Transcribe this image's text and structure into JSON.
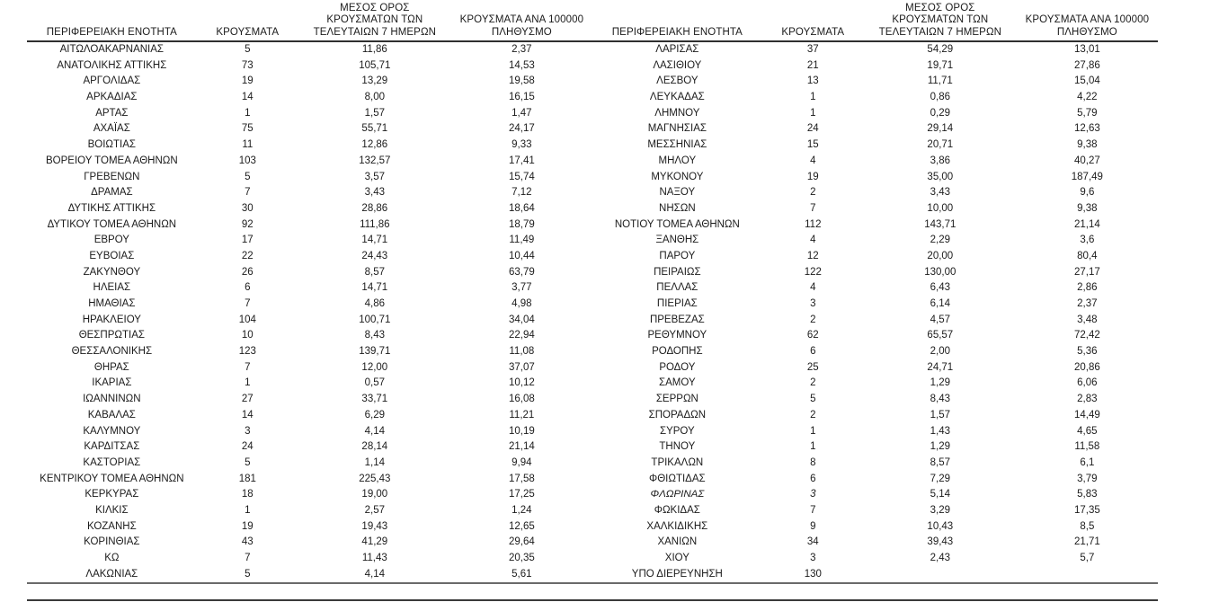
{
  "document": {
    "type": "regional-covid-cases-table",
    "language": "el",
    "text_color": "#1b1b1b",
    "header_rule_color": "#2f2f2f",
    "bottom_rule1_color": "#6a6a6a",
    "bottom_rule2_color": "#3a3a3a"
  },
  "table": {
    "headers": {
      "region": "ΠΕΡΙΦΕΡΕΙΑΚΗ ΕΝΟΤΗΤΑ",
      "cases": "ΚΡΟΥΣΜΑΤΑ",
      "avg7_lines": [
        "ΜΕΣΟΣ ΟΡΟΣ",
        "ΚΡΟΥΣΜΑΤΩΝ ΤΩΝ",
        "ΤΕΛΕΥΤΑΙΩΝ 7 ΗΜΕΡΩΝ"
      ],
      "per100k_lines": [
        "ΚΡΟΥΣΜΑΤΑ ΑΝΑ 100000",
        "ΠΛΗΘΥΣΜΟ"
      ]
    },
    "left_rows": [
      {
        "region": "ΑΙΤΩΛΟΑΚΑΡΝΑΝΙΑΣ",
        "cases": "5",
        "avg7": "11,86",
        "per100k": "2,37"
      },
      {
        "region": "ΑΝΑΤΟΛΙΚΗΣ ΑΤΤΙΚΗΣ",
        "cases": "73",
        "avg7": "105,71",
        "per100k": "14,53"
      },
      {
        "region": "ΑΡΓΟΛΙΔΑΣ",
        "cases": "19",
        "avg7": "13,29",
        "per100k": "19,58"
      },
      {
        "region": "ΑΡΚΑΔΙΑΣ",
        "cases": "14",
        "avg7": "8,00",
        "per100k": "16,15"
      },
      {
        "region": "ΑΡΤΑΣ",
        "cases": "1",
        "avg7": "1,57",
        "per100k": "1,47"
      },
      {
        "region": "ΑΧΑΪΑΣ",
        "cases": "75",
        "avg7": "55,71",
        "per100k": "24,17"
      },
      {
        "region": "ΒΟΙΩΤΙΑΣ",
        "cases": "11",
        "avg7": "12,86",
        "per100k": "9,33"
      },
      {
        "region": "ΒΟΡΕΙΟΥ ΤΟΜΕΑ ΑΘΗΝΩΝ",
        "cases": "103",
        "avg7": "132,57",
        "per100k": "17,41"
      },
      {
        "region": "ΓΡΕΒΕΝΩΝ",
        "cases": "5",
        "avg7": "3,57",
        "per100k": "15,74"
      },
      {
        "region": "ΔΡΑΜΑΣ",
        "cases": "7",
        "avg7": "3,43",
        "per100k": "7,12"
      },
      {
        "region": "ΔΥΤΙΚΗΣ ΑΤΤΙΚΗΣ",
        "cases": "30",
        "avg7": "28,86",
        "per100k": "18,64"
      },
      {
        "region": "ΔΥΤΙΚΟΥ ΤΟΜΕΑ ΑΘΗΝΩΝ",
        "cases": "92",
        "avg7": "111,86",
        "per100k": "18,79"
      },
      {
        "region": "ΕΒΡΟΥ",
        "cases": "17",
        "avg7": "14,71",
        "per100k": "11,49"
      },
      {
        "region": "ΕΥΒΟΙΑΣ",
        "cases": "22",
        "avg7": "24,43",
        "per100k": "10,44"
      },
      {
        "region": "ΖΑΚΥΝΘΟΥ",
        "cases": "26",
        "avg7": "8,57",
        "per100k": "63,79"
      },
      {
        "region": "ΗΛΕΙΑΣ",
        "cases": "6",
        "avg7": "14,71",
        "per100k": "3,77"
      },
      {
        "region": "ΗΜΑΘΙΑΣ",
        "cases": "7",
        "avg7": "4,86",
        "per100k": "4,98"
      },
      {
        "region": "ΗΡΑΚΛΕΙΟΥ",
        "cases": "104",
        "avg7": "100,71",
        "per100k": "34,04"
      },
      {
        "region": "ΘΕΣΠΡΩΤΙΑΣ",
        "cases": "10",
        "avg7": "8,43",
        "per100k": "22,94"
      },
      {
        "region": "ΘΕΣΣΑΛΟΝΙΚΗΣ",
        "cases": "123",
        "avg7": "139,71",
        "per100k": "11,08"
      },
      {
        "region": "ΘΗΡΑΣ",
        "cases": "7",
        "avg7": "12,00",
        "per100k": "37,07"
      },
      {
        "region": "ΙΚΑΡΙΑΣ",
        "cases": "1",
        "avg7": "0,57",
        "per100k": "10,12"
      },
      {
        "region": "ΙΩΑΝΝΙΝΩΝ",
        "cases": "27",
        "avg7": "33,71",
        "per100k": "16,08"
      },
      {
        "region": "ΚΑΒΑΛΑΣ",
        "cases": "14",
        "avg7": "6,29",
        "per100k": "11,21"
      },
      {
        "region": "ΚΑΛΥΜΝΟΥ",
        "cases": "3",
        "avg7": "4,14",
        "per100k": "10,19"
      },
      {
        "region": "ΚΑΡΔΙΤΣΑΣ",
        "cases": "24",
        "avg7": "28,14",
        "per100k": "21,14"
      },
      {
        "region": "ΚΑΣΤΟΡΙΑΣ",
        "cases": "5",
        "avg7": "1,14",
        "per100k": "9,94"
      },
      {
        "region": "ΚΕΝΤΡΙΚΟΥ ΤΟΜΕΑ ΑΘΗΝΩΝ",
        "cases": "181",
        "avg7": "225,43",
        "per100k": "17,58"
      },
      {
        "region": "ΚΕΡΚΥΡΑΣ",
        "cases": "18",
        "avg7": "19,00",
        "per100k": "17,25"
      },
      {
        "region": "ΚΙΛΚΙΣ",
        "cases": "1",
        "avg7": "2,57",
        "per100k": "1,24"
      },
      {
        "region": "ΚΟΖΑΝΗΣ",
        "cases": "19",
        "avg7": "19,43",
        "per100k": "12,65"
      },
      {
        "region": "ΚΟΡΙΝΘΙΑΣ",
        "cases": "43",
        "avg7": "41,29",
        "per100k": "29,64"
      },
      {
        "region": "ΚΩ",
        "cases": "7",
        "avg7": "11,43",
        "per100k": "20,35"
      },
      {
        "region": "ΛΑΚΩΝΙΑΣ",
        "cases": "5",
        "avg7": "4,14",
        "per100k": "5,61"
      }
    ],
    "right_rows": [
      {
        "region": "ΛΑΡΙΣΑΣ",
        "cases": "37",
        "avg7": "54,29",
        "per100k": "13,01"
      },
      {
        "region": "ΛΑΣΙΘΙΟΥ",
        "cases": "21",
        "avg7": "19,71",
        "per100k": "27,86"
      },
      {
        "region": "ΛΕΣΒΟΥ",
        "cases": "13",
        "avg7": "11,71",
        "per100k": "15,04"
      },
      {
        "region": "ΛΕΥΚΑΔΑΣ",
        "cases": "1",
        "avg7": "0,86",
        "per100k": "4,22"
      },
      {
        "region": "ΛΗΜΝΟΥ",
        "cases": "1",
        "avg7": "0,29",
        "per100k": "5,79"
      },
      {
        "region": "ΜΑΓΝΗΣΙΑΣ",
        "cases": "24",
        "avg7": "29,14",
        "per100k": "12,63"
      },
      {
        "region": "ΜΕΣΣΗΝΙΑΣ",
        "cases": "15",
        "avg7": "20,71",
        "per100k": "9,38"
      },
      {
        "region": "ΜΗΛΟΥ",
        "cases": "4",
        "avg7": "3,86",
        "per100k": "40,27"
      },
      {
        "region": "ΜΥΚΟΝΟΥ",
        "cases": "19",
        "avg7": "35,00",
        "per100k": "187,49"
      },
      {
        "region": "ΝΑΞΟΥ",
        "cases": "2",
        "avg7": "3,43",
        "per100k": "9,6"
      },
      {
        "region": "ΝΗΣΩΝ",
        "cases": "7",
        "avg7": "10,00",
        "per100k": "9,38"
      },
      {
        "region": "ΝΟΤΙΟΥ ΤΟΜΕΑ ΑΘΗΝΩΝ",
        "cases": "112",
        "avg7": "143,71",
        "per100k": "21,14"
      },
      {
        "region": "ΞΑΝΘΗΣ",
        "cases": "4",
        "avg7": "2,29",
        "per100k": "3,6"
      },
      {
        "region": "ΠΑΡΟΥ",
        "cases": "12",
        "avg7": "20,00",
        "per100k": "80,4"
      },
      {
        "region": "ΠΕΙΡΑΙΩΣ",
        "cases": "122",
        "avg7": "130,00",
        "per100k": "27,17"
      },
      {
        "region": "ΠΕΛΛΑΣ",
        "cases": "4",
        "avg7": "6,43",
        "per100k": "2,86"
      },
      {
        "region": "ΠΙΕΡΙΑΣ",
        "cases": "3",
        "avg7": "6,14",
        "per100k": "2,37"
      },
      {
        "region": "ΠΡΕΒΕΖΑΣ",
        "cases": "2",
        "avg7": "4,57",
        "per100k": "3,48"
      },
      {
        "region": "ΡΕΘΥΜΝΟΥ",
        "cases": "62",
        "avg7": "65,57",
        "per100k": "72,42"
      },
      {
        "region": "ΡΟΔΟΠΗΣ",
        "cases": "6",
        "avg7": "2,00",
        "per100k": "5,36"
      },
      {
        "region": "ΡΟΔΟΥ",
        "cases": "25",
        "avg7": "24,71",
        "per100k": "20,86"
      },
      {
        "region": "ΣΑΜΟΥ",
        "cases": "2",
        "avg7": "1,29",
        "per100k": "6,06"
      },
      {
        "region": "ΣΕΡΡΩΝ",
        "cases": "5",
        "avg7": "8,43",
        "per100k": "2,83"
      },
      {
        "region": "ΣΠΟΡΑΔΩΝ",
        "cases": "2",
        "avg7": "1,57",
        "per100k": "14,49"
      },
      {
        "region": "ΣΥΡΟΥ",
        "cases": "1",
        "avg7": "1,43",
        "per100k": "4,65"
      },
      {
        "region": "ΤΗΝΟΥ",
        "cases": "1",
        "avg7": "1,29",
        "per100k": "11,58"
      },
      {
        "region": "ΤΡΙΚΑΛΩΝ",
        "cases": "8",
        "avg7": "8,57",
        "per100k": "6,1"
      },
      {
        "region": "ΦΘΙΩΤΙΔΑΣ",
        "cases": "6",
        "avg7": "7,29",
        "per100k": "3,79"
      },
      {
        "region": "ΦΛΩΡΙΝΑΣ",
        "cases": "3",
        "avg7": "5,14",
        "per100k": "5,83",
        "italic": true
      },
      {
        "region": "ΦΩΚΙΔΑΣ",
        "cases": "7",
        "avg7": "3,29",
        "per100k": "17,35"
      },
      {
        "region": "ΧΑΛΚΙΔΙΚΗΣ",
        "cases": "9",
        "avg7": "10,43",
        "per100k": "8,5"
      },
      {
        "region": "ΧΑΝΙΩΝ",
        "cases": "34",
        "avg7": "39,43",
        "per100k": "21,71"
      },
      {
        "region": "ΧΙΟΥ",
        "cases": "3",
        "avg7": "2,43",
        "per100k": "5,7"
      },
      {
        "region": "ΥΠΟ ΔΙΕΡΕΥΝΗΣΗ",
        "cases": "130",
        "avg7": "",
        "per100k": ""
      }
    ]
  }
}
